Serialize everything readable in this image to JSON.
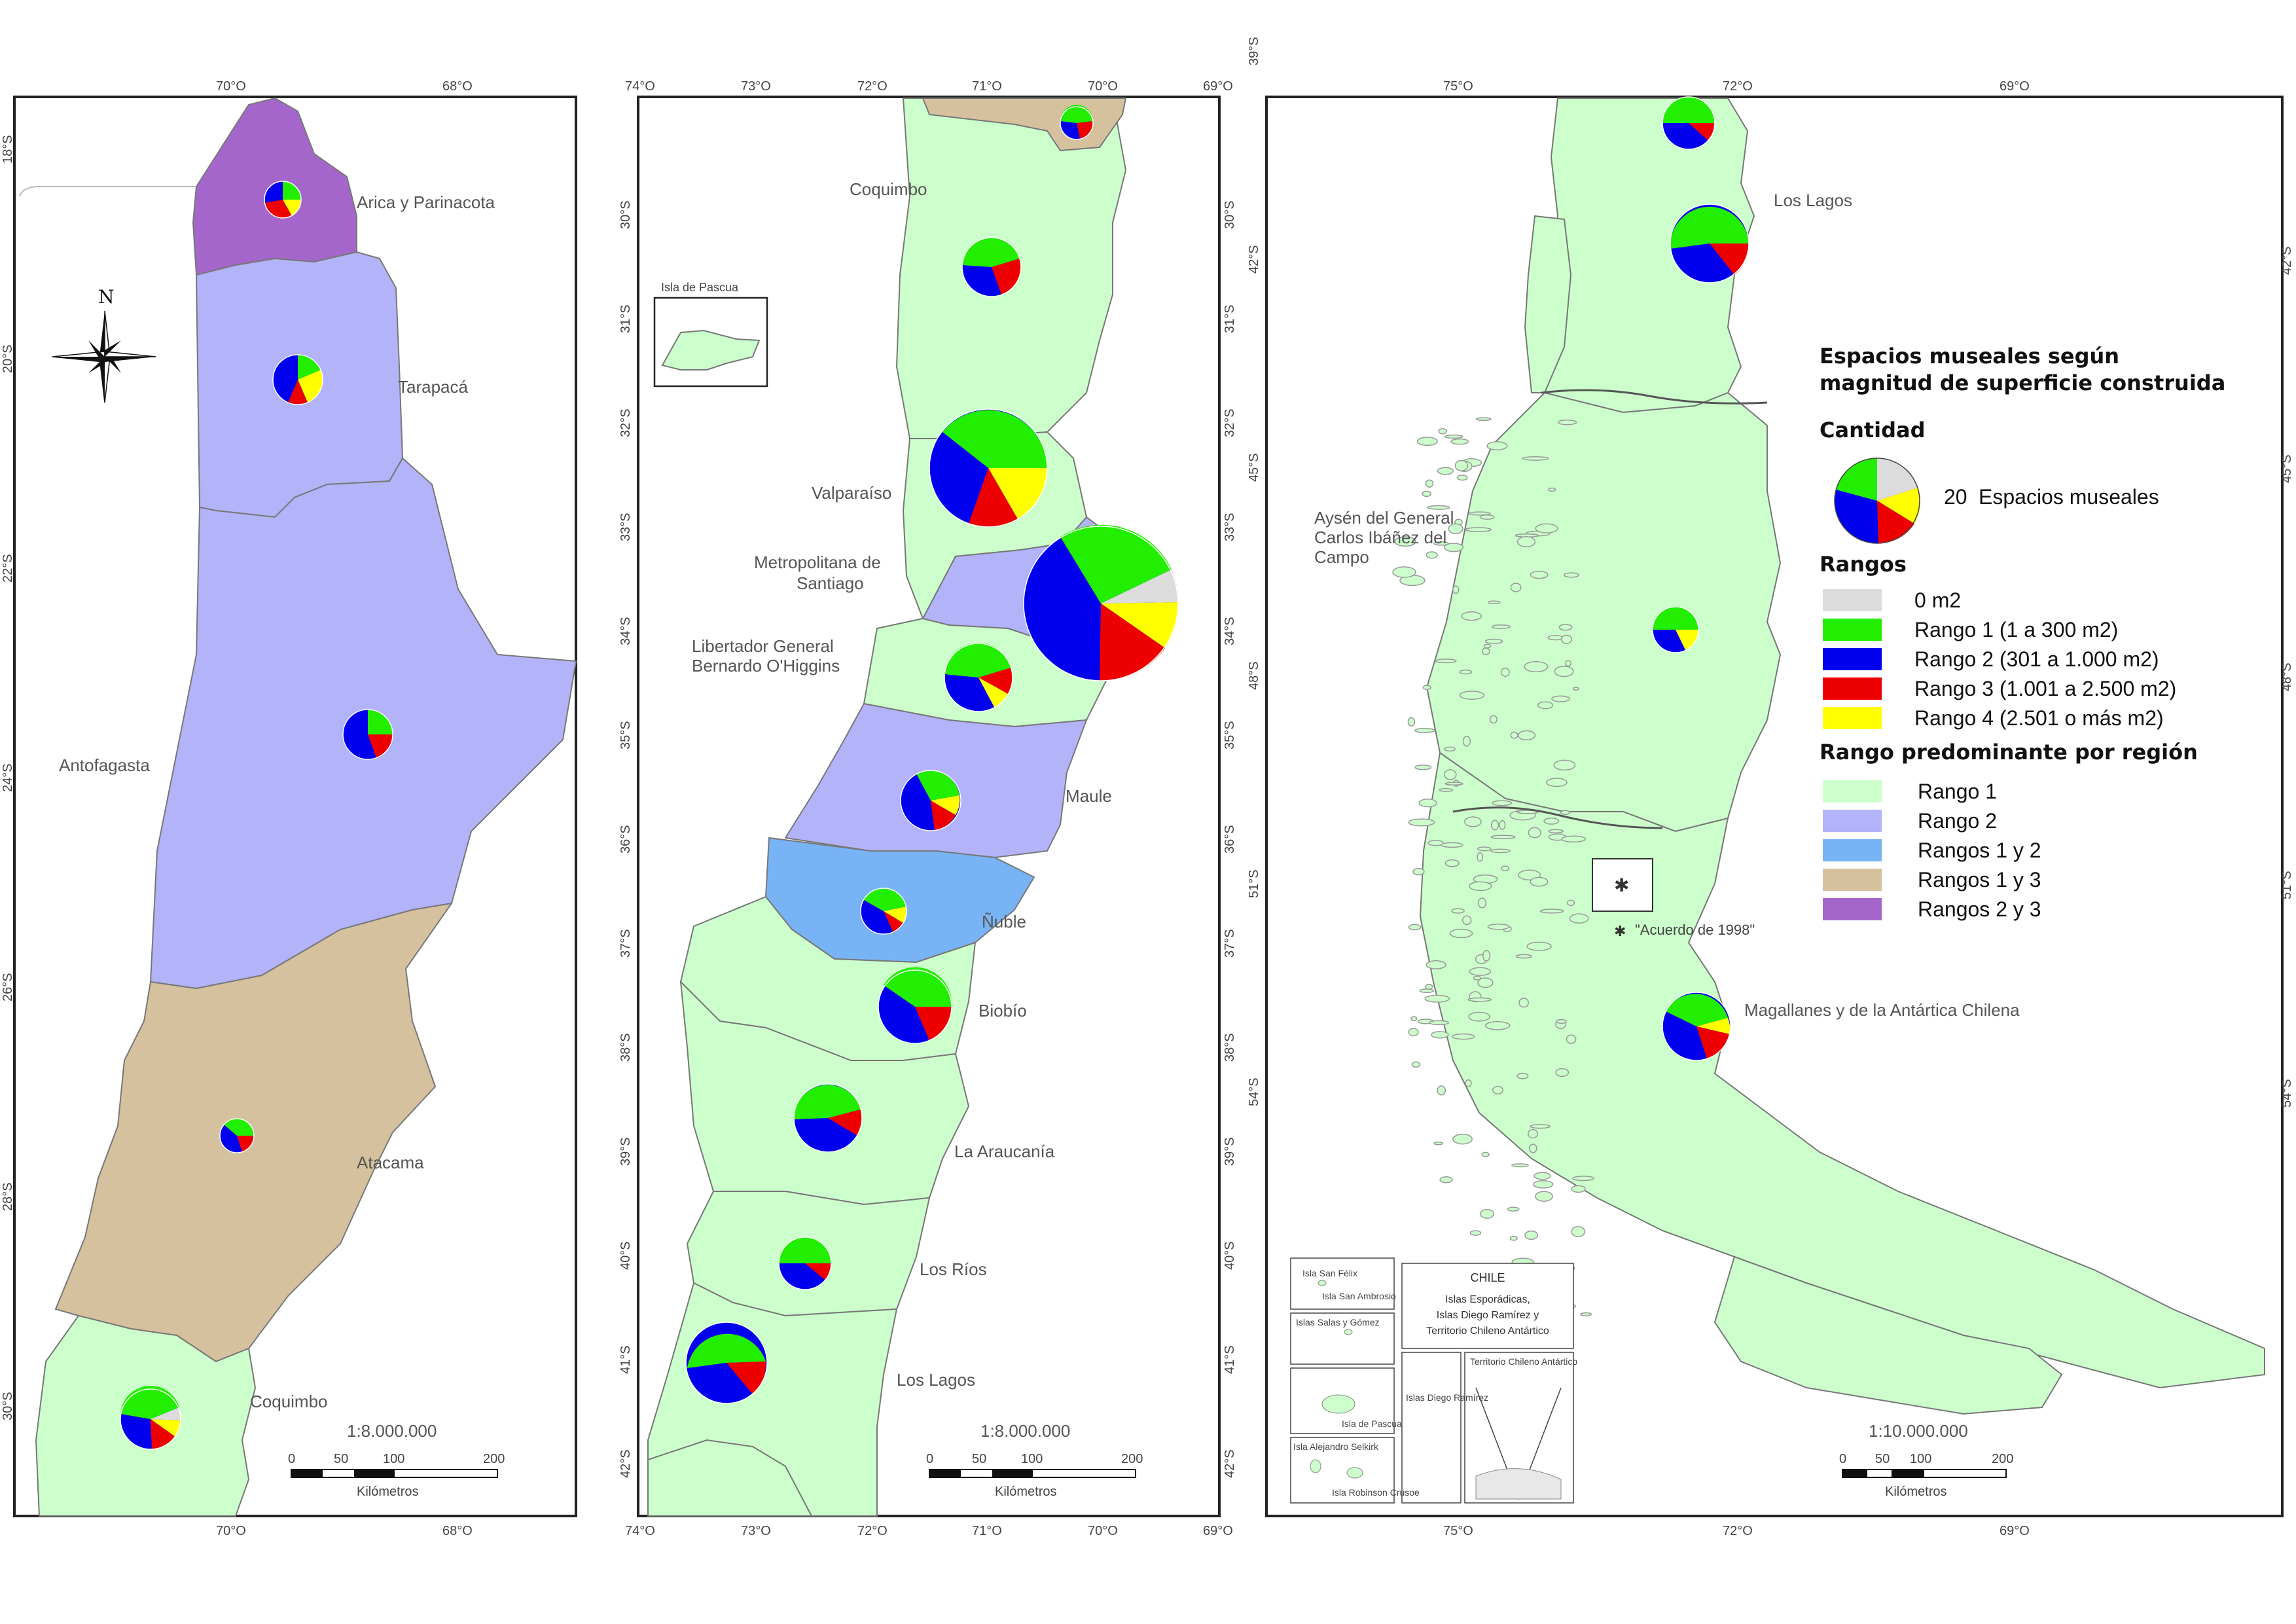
{
  "legend": {
    "title_line1": "Espacios museales según",
    "title_line2": "magnitud de superficie construida",
    "cantidad_heading": "Cantidad",
    "cantidad_value": "20",
    "cantidad_unit": "Espacios museales",
    "rangos_heading": "Rangos",
    "rangos": [
      {
        "label": "0 m2",
        "color": "#dcdcdc"
      },
      {
        "label": "Rango 1 (1 a 300 m2)",
        "color": "#22ee00"
      },
      {
        "label": "Rango 2 (301 a 1.000 m2)",
        "color": "#0000ee"
      },
      {
        "label": "Rango 3 (1.001 a 2.500 m2)",
        "color": "#ee0000"
      },
      {
        "label": "Rango 4 (2.501 o más m2)",
        "color": "#ffff00"
      }
    ],
    "predominante_heading": "Rango predominante por región",
    "predominante": [
      {
        "label": "Rango 1",
        "color": "#ccffcc"
      },
      {
        "label": "Rango 2",
        "color": "#b3b3fa"
      },
      {
        "label": "Rangos 1 y 2",
        "color": "#78b4f5"
      },
      {
        "label": "Rangos 1 y 3",
        "color": "#d6c19e"
      },
      {
        "label": "Rangos 2 y 3",
        "color": "#a566cc"
      }
    ]
  },
  "north_label": "N",
  "panel1": {
    "top_ticks": [
      "70°O",
      "68°O"
    ],
    "bottom_ticks": [
      "70°O",
      "68°O"
    ],
    "lat_ticks": [
      "18°S",
      "20°S",
      "22°S",
      "24°S",
      "26°S",
      "28°S",
      "30°S"
    ],
    "regions": [
      "Arica y Parinacota",
      "Tarapacá",
      "Antofagasta",
      "Atacama",
      "Coquimbo"
    ],
    "scale_text": "1:8.000.000",
    "scale_ticks": [
      "0",
      "50",
      "100",
      "200"
    ],
    "scale_unit": "Kilómetros"
  },
  "panel2": {
    "top_ticks": [
      "74°O",
      "73°O",
      "72°O",
      "71°O",
      "70°O",
      "69°O"
    ],
    "bottom_ticks": [
      "74°O",
      "73°O",
      "72°O",
      "71°O",
      "70°O",
      "69°O"
    ],
    "lat_left": [
      "30°S",
      "31°S",
      "32°S",
      "33°S",
      "34°S",
      "35°S",
      "36°S",
      "37°S",
      "38°S",
      "39°S",
      "40°S",
      "41°S",
      "42°S"
    ],
    "lat_right": [
      "30°S",
      "31°S",
      "32°S",
      "33°S",
      "34°S",
      "35°S",
      "36°S",
      "37°S",
      "38°S",
      "39°S",
      "40°S",
      "41°S",
      "42°S"
    ],
    "regions": [
      "Coquimbo",
      "Valparaíso",
      "Metropolitana de",
      "Santiago",
      "Libertador General",
      "Bernardo O'Higgins",
      "Maule",
      "Ñuble",
      "Biobío",
      "La Araucanía",
      "Los Ríos",
      "Los Lagos"
    ],
    "inset_label": "Isla de Pascua",
    "scale_text": "1:8.000.000",
    "scale_ticks": [
      "0",
      "50",
      "100",
      "200"
    ],
    "scale_unit": "Kilómetros"
  },
  "panel3": {
    "top_ticks": [
      "75°O",
      "72°O",
      "69°O"
    ],
    "bottom_ticks": [
      "75°O",
      "72°O",
      "69°O"
    ],
    "lat_left": [
      "39°S",
      "42°S",
      "45°S",
      "48°S",
      "51°S",
      "54°S"
    ],
    "lat_right": [
      "42°S",
      "45°S",
      "48°S",
      "51°S",
      "54°S"
    ],
    "regions": [
      "Los Lagos",
      "Aysén del General",
      "Carlos Ibáñez del",
      "Campo",
      "Magallanes y de la Antártica Chilena"
    ],
    "acuerdo": "\"Acuerdo de 1998\"",
    "chile_box": [
      "CHILE",
      "Islas Esporádicas,",
      "Islas Diego Ramírez y",
      "Territorio Chileno Antártico"
    ],
    "insets": [
      "Isla San Félix",
      "Isla San Ambrosio",
      "Islas Salas y Gómez",
      "Isla de Pascua",
      "Isla Alejandro Selkirk",
      "Isla Robinson Crusoe",
      "Islas Diego Ramírez",
      "Territorio Chileno Antártico"
    ],
    "scale_text": "1:10.000.000",
    "scale_ticks": [
      "0",
      "50",
      "100",
      "200"
    ],
    "scale_unit": "Kilómetros"
  }
}
